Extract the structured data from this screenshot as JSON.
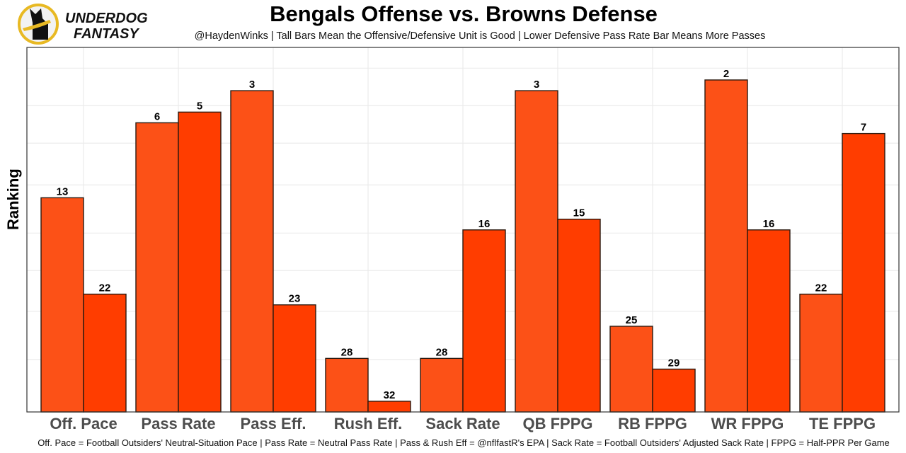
{
  "header": {
    "logo_text_line1": "UNDERDOG",
    "logo_text_line2": "FANTASY",
    "title": "Bengals Offense vs. Browns Defense",
    "subtitle": "@HaydenWinks | Tall Bars Mean the Offensive/Defensive Unit is Good | Lower Defensive Pass Rate Bar Means More Passes"
  },
  "footer": {
    "caption": "Off. Pace = Football Outsiders' Neutral-Situation Pace | Pass Rate = Neutral Pass Rate | Pass & Rush Eff = @nflfastR's EPA | Sack Rate = Football Outsiders' Adjusted Sack Rate | FPPG = Half-PPR Per Game"
  },
  "colors": {
    "offense": "#FC5117",
    "defense": "#FF3D00",
    "bar_outline": "#2b1a10",
    "grid": "#ebebeb",
    "panel_border": "#333333",
    "logo_ring": "#E8B923"
  },
  "chart_data": {
    "type": "bar",
    "title": "Bengals Offense vs. Browns Defense",
    "subtitle": "@HaydenWinks | Tall Bars Mean the Offensive/Defensive Unit is Good | Lower Defensive Pass Rate Bar Means More Passes",
    "xlabel": "",
    "ylabel": "Ranking",
    "y_scale": "reversed rank (bar height = 33 - rank)",
    "ylim_rank": [
      33,
      1
    ],
    "grid": true,
    "legend": "none",
    "categories": [
      "Off. Pace",
      "Pass Rate",
      "Pass Eff.",
      "Rush Eff.",
      "Sack Rate",
      "QB FPPG",
      "RB FPPG",
      "WR FPPG",
      "TE FPPG"
    ],
    "series": [
      {
        "name": "Bengals Offense",
        "values": [
          13,
          6,
          3,
          28,
          28,
          3,
          25,
          2,
          22
        ]
      },
      {
        "name": "Browns Defense",
        "values": [
          22,
          5,
          23,
          32,
          16,
          15,
          29,
          16,
          7
        ]
      }
    ]
  }
}
